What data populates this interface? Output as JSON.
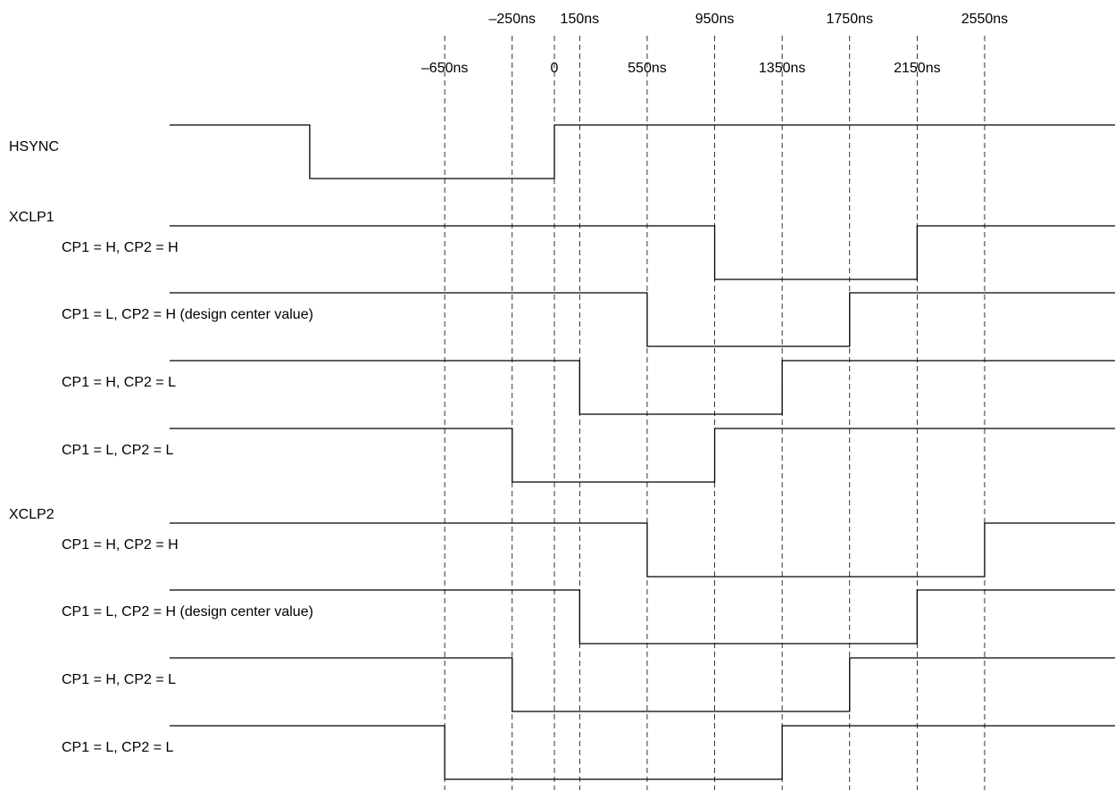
{
  "diagram": {
    "time_markers": [
      {
        "label": "–650ns",
        "t": -650,
        "row": "lower"
      },
      {
        "label": "–250ns",
        "t": -250,
        "row": "upper"
      },
      {
        "label": "0",
        "t": 0,
        "row": "lower"
      },
      {
        "label": "150ns",
        "t": 150,
        "row": "upper"
      },
      {
        "label": "550ns",
        "t": 550,
        "row": "lower"
      },
      {
        "label": "950ns",
        "t": 950,
        "row": "upper"
      },
      {
        "label": "1350ns",
        "t": 1350,
        "row": "lower"
      },
      {
        "label": "1750ns",
        "t": 1750,
        "row": "upper"
      },
      {
        "label": "2150ns",
        "t": 2150,
        "row": "lower"
      },
      {
        "label": "2550ns",
        "t": 2550,
        "row": "upper"
      }
    ],
    "signals": [
      {
        "id": "hsync",
        "label": "HSYNC",
        "group_label": "",
        "label_indent": false,
        "initial": "H",
        "transitions": [
          {
            "t": -1450,
            "to": "L"
          },
          {
            "t": 0,
            "to": "H"
          }
        ]
      },
      {
        "id": "xclp1-1",
        "group_label": "XCLP1",
        "label": "CP1 = H, CP2 = H",
        "label_indent": true,
        "initial": "H",
        "transitions": [
          {
            "t": 950,
            "to": "L"
          },
          {
            "t": 2150,
            "to": "H"
          }
        ]
      },
      {
        "id": "xclp1-2",
        "group_label": "",
        "label": "CP1 = L, CP2 = H (design center value)",
        "label_indent": true,
        "initial": "H",
        "transitions": [
          {
            "t": 550,
            "to": "L"
          },
          {
            "t": 1750,
            "to": "H"
          }
        ]
      },
      {
        "id": "xclp1-3",
        "group_label": "",
        "label": "CP1 = H, CP2 = L",
        "label_indent": true,
        "initial": "H",
        "transitions": [
          {
            "t": 150,
            "to": "L"
          },
          {
            "t": 1350,
            "to": "H"
          }
        ]
      },
      {
        "id": "xclp1-4",
        "group_label": "",
        "label": "CP1 = L, CP2 = L",
        "label_indent": true,
        "initial": "H",
        "transitions": [
          {
            "t": -250,
            "to": "L"
          },
          {
            "t": 950,
            "to": "H"
          }
        ]
      },
      {
        "id": "xclp2-1",
        "group_label": "XCLP2",
        "label": "CP1 = H, CP2 = H",
        "label_indent": true,
        "initial": "H",
        "transitions": [
          {
            "t": 550,
            "to": "L"
          },
          {
            "t": 2550,
            "to": "H"
          }
        ]
      },
      {
        "id": "xclp2-2",
        "group_label": "",
        "label": "CP1 = L, CP2 = H (design center value)",
        "label_indent": true,
        "initial": "H",
        "transitions": [
          {
            "t": 150,
            "to": "L"
          },
          {
            "t": 2150,
            "to": "H"
          }
        ]
      },
      {
        "id": "xclp2-3",
        "group_label": "",
        "label": "CP1 = H, CP2 = L",
        "label_indent": true,
        "initial": "H",
        "transitions": [
          {
            "t": -250,
            "to": "L"
          },
          {
            "t": 1750,
            "to": "H"
          }
        ]
      },
      {
        "id": "xclp2-4",
        "group_label": "",
        "label": "CP1 = L, CP2 = L",
        "label_indent": true,
        "initial": "H",
        "transitions": [
          {
            "t": -650,
            "to": "L"
          },
          {
            "t": 1350,
            "to": "H"
          }
        ]
      }
    ]
  }
}
